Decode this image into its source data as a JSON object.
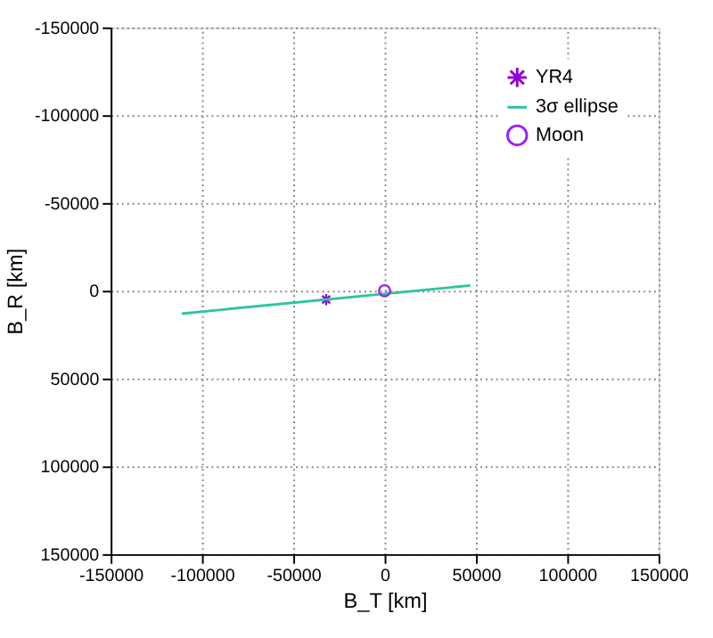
{
  "chart_data": {
    "type": "line",
    "xlabel": "B_T [km]",
    "ylabel": "B_R [km]",
    "xlim": [
      -150000,
      150000
    ],
    "ylim": [
      150000,
      -150000
    ],
    "xticks": [
      -150000,
      -100000,
      -50000,
      0,
      50000,
      100000,
      150000
    ],
    "yticks": [
      -150000,
      -100000,
      -50000,
      0,
      50000,
      100000,
      150000
    ],
    "grid": true,
    "legend": "top right",
    "series": [
      {
        "name": "YR4",
        "type": "scatter",
        "marker": "cross",
        "color": "#9400d3",
        "x": [
          -32000
        ],
        "values": [
          5000
        ]
      },
      {
        "name": "3σ ellipse",
        "color": "#2ec4a0",
        "x": [
          -111000,
          47000
        ],
        "values": [
          13000,
          -3000
        ]
      },
      {
        "name": "Moon",
        "type": "scatter",
        "marker": "circle",
        "color": "#a020f0",
        "x": [
          0
        ],
        "values": [
          0
        ]
      }
    ]
  }
}
